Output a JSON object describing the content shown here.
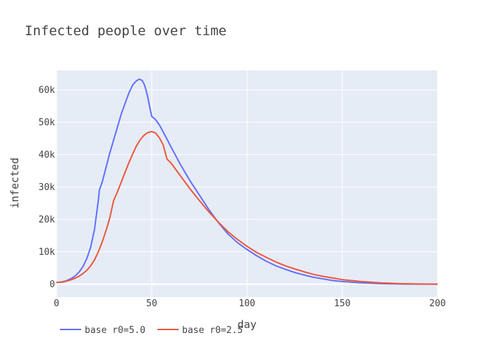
{
  "chart_data": {
    "type": "line",
    "title": "Infected people over time",
    "xlabel": "day",
    "ylabel": "infected",
    "xlim": [
      0,
      200
    ],
    "ylim": [
      -4000,
      66000
    ],
    "xticks": [
      0,
      50,
      100,
      150,
      200
    ],
    "xtick_labels": [
      "0",
      "50",
      "100",
      "150",
      "200"
    ],
    "yticks": [
      0,
      10000,
      20000,
      30000,
      40000,
      50000,
      60000
    ],
    "ytick_labels": [
      "0",
      "10k",
      "20k",
      "30k",
      "40k",
      "50k",
      "60k"
    ],
    "grid": true,
    "legend_position": "bottom-left",
    "plot_background": "#e5ecf6",
    "series": [
      {
        "name": "base r0=5.0",
        "color": "#636efa",
        "points": [
          [
            0,
            500
          ],
          [
            3,
            700
          ],
          [
            5,
            1000
          ],
          [
            8,
            1800
          ],
          [
            10,
            2600
          ],
          [
            12,
            3800
          ],
          [
            14,
            5500
          ],
          [
            16,
            8000
          ],
          [
            18,
            11500
          ],
          [
            20,
            17000
          ],
          [
            21,
            21500
          ],
          [
            22,
            26000
          ],
          [
            22.5,
            29000
          ],
          [
            24,
            31500
          ],
          [
            26,
            36000
          ],
          [
            28,
            40500
          ],
          [
            30,
            44500
          ],
          [
            32,
            48500
          ],
          [
            34,
            52500
          ],
          [
            36,
            55800
          ],
          [
            38,
            59000
          ],
          [
            40,
            61500
          ],
          [
            42,
            62800
          ],
          [
            43.5,
            63300
          ],
          [
            45,
            62900
          ],
          [
            46,
            61800
          ],
          [
            47,
            60000
          ],
          [
            48,
            57500
          ],
          [
            49,
            54500
          ],
          [
            50,
            51800
          ],
          [
            52,
            50800
          ],
          [
            54,
            49200
          ],
          [
            56,
            47000
          ],
          [
            58,
            44800
          ],
          [
            60,
            42500
          ],
          [
            65,
            37000
          ],
          [
            70,
            32000
          ],
          [
            75,
            27500
          ],
          [
            80,
            23000
          ],
          [
            85,
            19000
          ],
          [
            90,
            15500
          ],
          [
            95,
            12800
          ],
          [
            100,
            10700
          ],
          [
            105,
            8800
          ],
          [
            110,
            7100
          ],
          [
            115,
            5700
          ],
          [
            120,
            4600
          ],
          [
            125,
            3600
          ],
          [
            130,
            2800
          ],
          [
            135,
            2100
          ],
          [
            140,
            1600
          ],
          [
            145,
            1100
          ],
          [
            150,
            800
          ],
          [
            160,
            400
          ],
          [
            170,
            150
          ],
          [
            180,
            50
          ],
          [
            190,
            10
          ],
          [
            200,
            0
          ]
        ]
      },
      {
        "name": "base r0=2.5",
        "color": "#ef553b",
        "points": [
          [
            0,
            500
          ],
          [
            3,
            600
          ],
          [
            5,
            900
          ],
          [
            8,
            1400
          ],
          [
            10,
            1900
          ],
          [
            12,
            2500
          ],
          [
            14,
            3300
          ],
          [
            16,
            4300
          ],
          [
            18,
            5700
          ],
          [
            20,
            7500
          ],
          [
            22,
            10000
          ],
          [
            24,
            13000
          ],
          [
            26,
            16500
          ],
          [
            28,
            20500
          ],
          [
            30,
            25800
          ],
          [
            32,
            28500
          ],
          [
            34,
            31500
          ],
          [
            36,
            34500
          ],
          [
            38,
            37500
          ],
          [
            40,
            40200
          ],
          [
            42,
            42700
          ],
          [
            44,
            44600
          ],
          [
            46,
            46000
          ],
          [
            48,
            46800
          ],
          [
            50,
            47100
          ],
          [
            52,
            46700
          ],
          [
            54,
            45200
          ],
          [
            56,
            43000
          ],
          [
            57,
            40800
          ],
          [
            58,
            38600
          ],
          [
            60,
            37500
          ],
          [
            65,
            33500
          ],
          [
            70,
            29500
          ],
          [
            75,
            25800
          ],
          [
            80,
            22300
          ],
          [
            85,
            19100
          ],
          [
            90,
            16200
          ],
          [
            95,
            13800
          ],
          [
            100,
            11700
          ],
          [
            105,
            9800
          ],
          [
            110,
            8300
          ],
          [
            115,
            6900
          ],
          [
            120,
            5700
          ],
          [
            125,
            4700
          ],
          [
            130,
            3800
          ],
          [
            135,
            3000
          ],
          [
            140,
            2400
          ],
          [
            145,
            1900
          ],
          [
            150,
            1400
          ],
          [
            160,
            800
          ],
          [
            170,
            400
          ],
          [
            180,
            150
          ],
          [
            190,
            50
          ],
          [
            200,
            0
          ]
        ]
      }
    ]
  }
}
